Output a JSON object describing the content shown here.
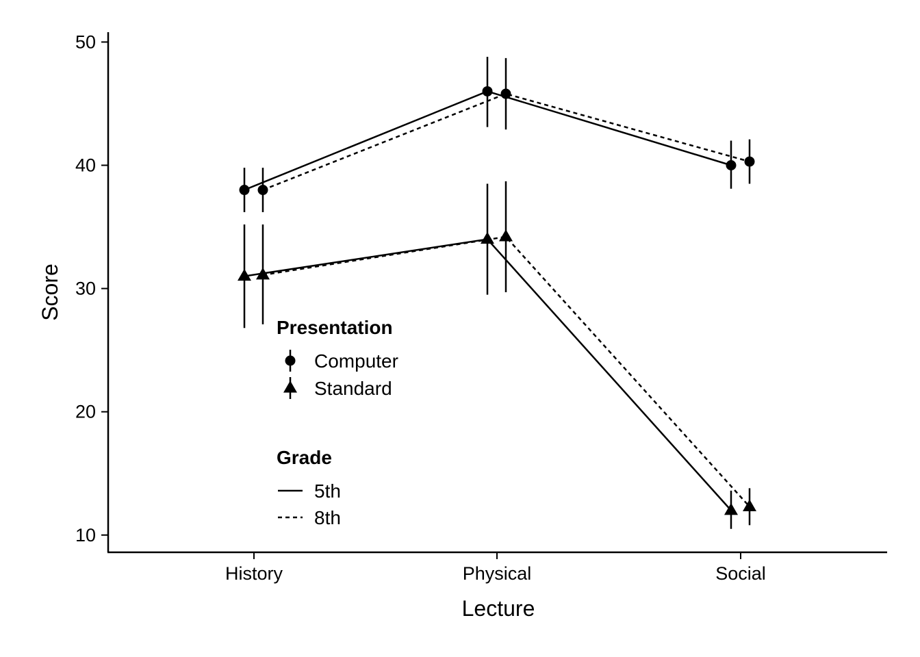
{
  "chart_data": {
    "type": "line",
    "xlabel": "Lecture",
    "ylabel": "Score",
    "categories": [
      "History",
      "Physical",
      "Social"
    ],
    "ylim": [
      8.6,
      50.8
    ],
    "yticks": [
      10,
      20,
      30,
      40,
      50
    ],
    "grid": false,
    "legend_position": "inside-left",
    "marker_color": "#000000",
    "series": [
      {
        "presentation": "Computer",
        "grade": "5th",
        "marker": "circle",
        "linestyle": "solid",
        "values": [
          38.0,
          46.0,
          40.0
        ],
        "error_low": [
          36.2,
          43.1,
          38.1
        ],
        "error_high": [
          39.8,
          48.8,
          42.0
        ]
      },
      {
        "presentation": "Computer",
        "grade": "8th",
        "marker": "circle",
        "linestyle": "dashed",
        "values": [
          38.0,
          45.8,
          40.3
        ],
        "error_low": [
          36.2,
          42.9,
          38.5
        ],
        "error_high": [
          39.8,
          48.7,
          42.1
        ]
      },
      {
        "presentation": "Standard",
        "grade": "5th",
        "marker": "triangle",
        "linestyle": "solid",
        "values": [
          31.0,
          34.0,
          12.0
        ],
        "error_low": [
          26.8,
          29.5,
          10.5
        ],
        "error_high": [
          35.2,
          38.5,
          13.6
        ]
      },
      {
        "presentation": "Standard",
        "grade": "8th",
        "marker": "triangle",
        "linestyle": "dashed",
        "values": [
          31.1,
          34.2,
          12.3
        ],
        "error_low": [
          27.1,
          29.7,
          10.8
        ],
        "error_high": [
          35.2,
          38.7,
          13.8
        ]
      }
    ],
    "legends": [
      {
        "title": "Presentation",
        "items": [
          {
            "label": "Computer",
            "marker": "circle"
          },
          {
            "label": "Standard",
            "marker": "triangle"
          }
        ]
      },
      {
        "title": "Grade",
        "items": [
          {
            "label": "5th",
            "linestyle": "solid"
          },
          {
            "label": "8th",
            "linestyle": "dashed"
          }
        ]
      }
    ]
  }
}
